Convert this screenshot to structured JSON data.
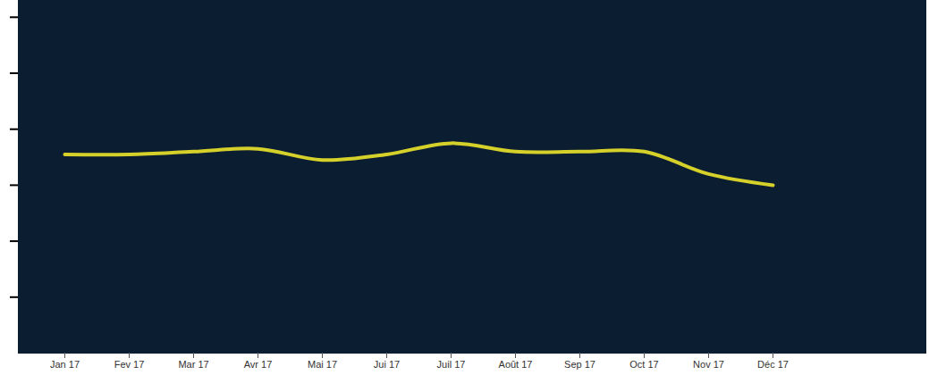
{
  "chart_data": {
    "type": "line",
    "categories": [
      "Jan 17",
      "Fev 17",
      "Mar 17",
      "Avr 17",
      "Mai 17",
      "Jui 17",
      "Juil 17",
      "Août 17",
      "Sep 17",
      "Oct 17",
      "Nov 17",
      "Déc 17"
    ],
    "values": [
      3.55,
      3.55,
      3.6,
      3.65,
      3.45,
      3.55,
      3.75,
      3.6,
      3.6,
      3.6,
      3.2,
      3.0
    ],
    "color": "#d6d12a",
    "ylim": [
      0,
      6.3
    ],
    "yticks": [
      1,
      2,
      3,
      4,
      5,
      6
    ],
    "grid": false,
    "tick_labels": "x"
  }
}
